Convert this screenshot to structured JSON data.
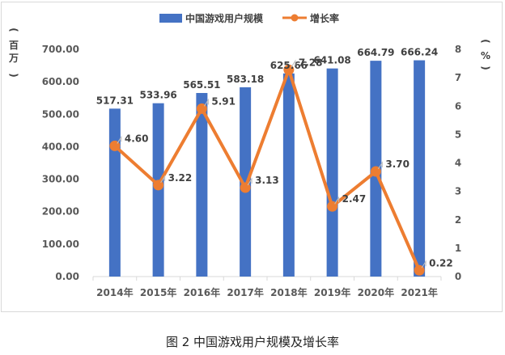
{
  "chart_data": {
    "type": "bar+line",
    "categories": [
      "2014年",
      "2015年",
      "2016年",
      "2017年",
      "2018年",
      "2019年",
      "2020年",
      "2021年"
    ],
    "series": [
      {
        "name": "中国游戏用户规模",
        "type": "bar",
        "axis": "left",
        "values": [
          517.31,
          533.96,
          565.51,
          583.18,
          625.66,
          641.08,
          664.79,
          666.24
        ],
        "labels": [
          "517.31",
          "533.96",
          "565.51",
          "583.18",
          "625.66",
          "641.08",
          "664.79",
          "666.24"
        ]
      },
      {
        "name": "增长率",
        "type": "line",
        "axis": "right",
        "values": [
          4.6,
          3.22,
          5.91,
          3.13,
          7.28,
          2.47,
          3.7,
          0.22
        ],
        "labels": [
          "4.60",
          "3.22",
          "5.91",
          "3.13",
          "7.28",
          "2.47",
          "3.70",
          "0.22"
        ]
      }
    ],
    "left_axis": {
      "ylim": [
        0,
        700
      ],
      "ticks": [
        "0.00",
        "100.00",
        "200.00",
        "300.00",
        "400.00",
        "500.00",
        "600.00",
        "700.00"
      ],
      "unit_open": "(",
      "unit_1": "百",
      "unit_2": "万",
      "unit_close": ")"
    },
    "right_axis": {
      "ylim": [
        0,
        8
      ],
      "ticks": [
        "0",
        "1",
        "2",
        "3",
        "4",
        "5",
        "6",
        "7",
        "8"
      ],
      "unit_open": "(",
      "unit": "%",
      "unit_close": ")"
    },
    "legend_position": "top",
    "colors": {
      "bar": "#4472c4",
      "line": "#ed7d31"
    }
  },
  "caption": "图 2 中国游戏用户规模及增长率"
}
